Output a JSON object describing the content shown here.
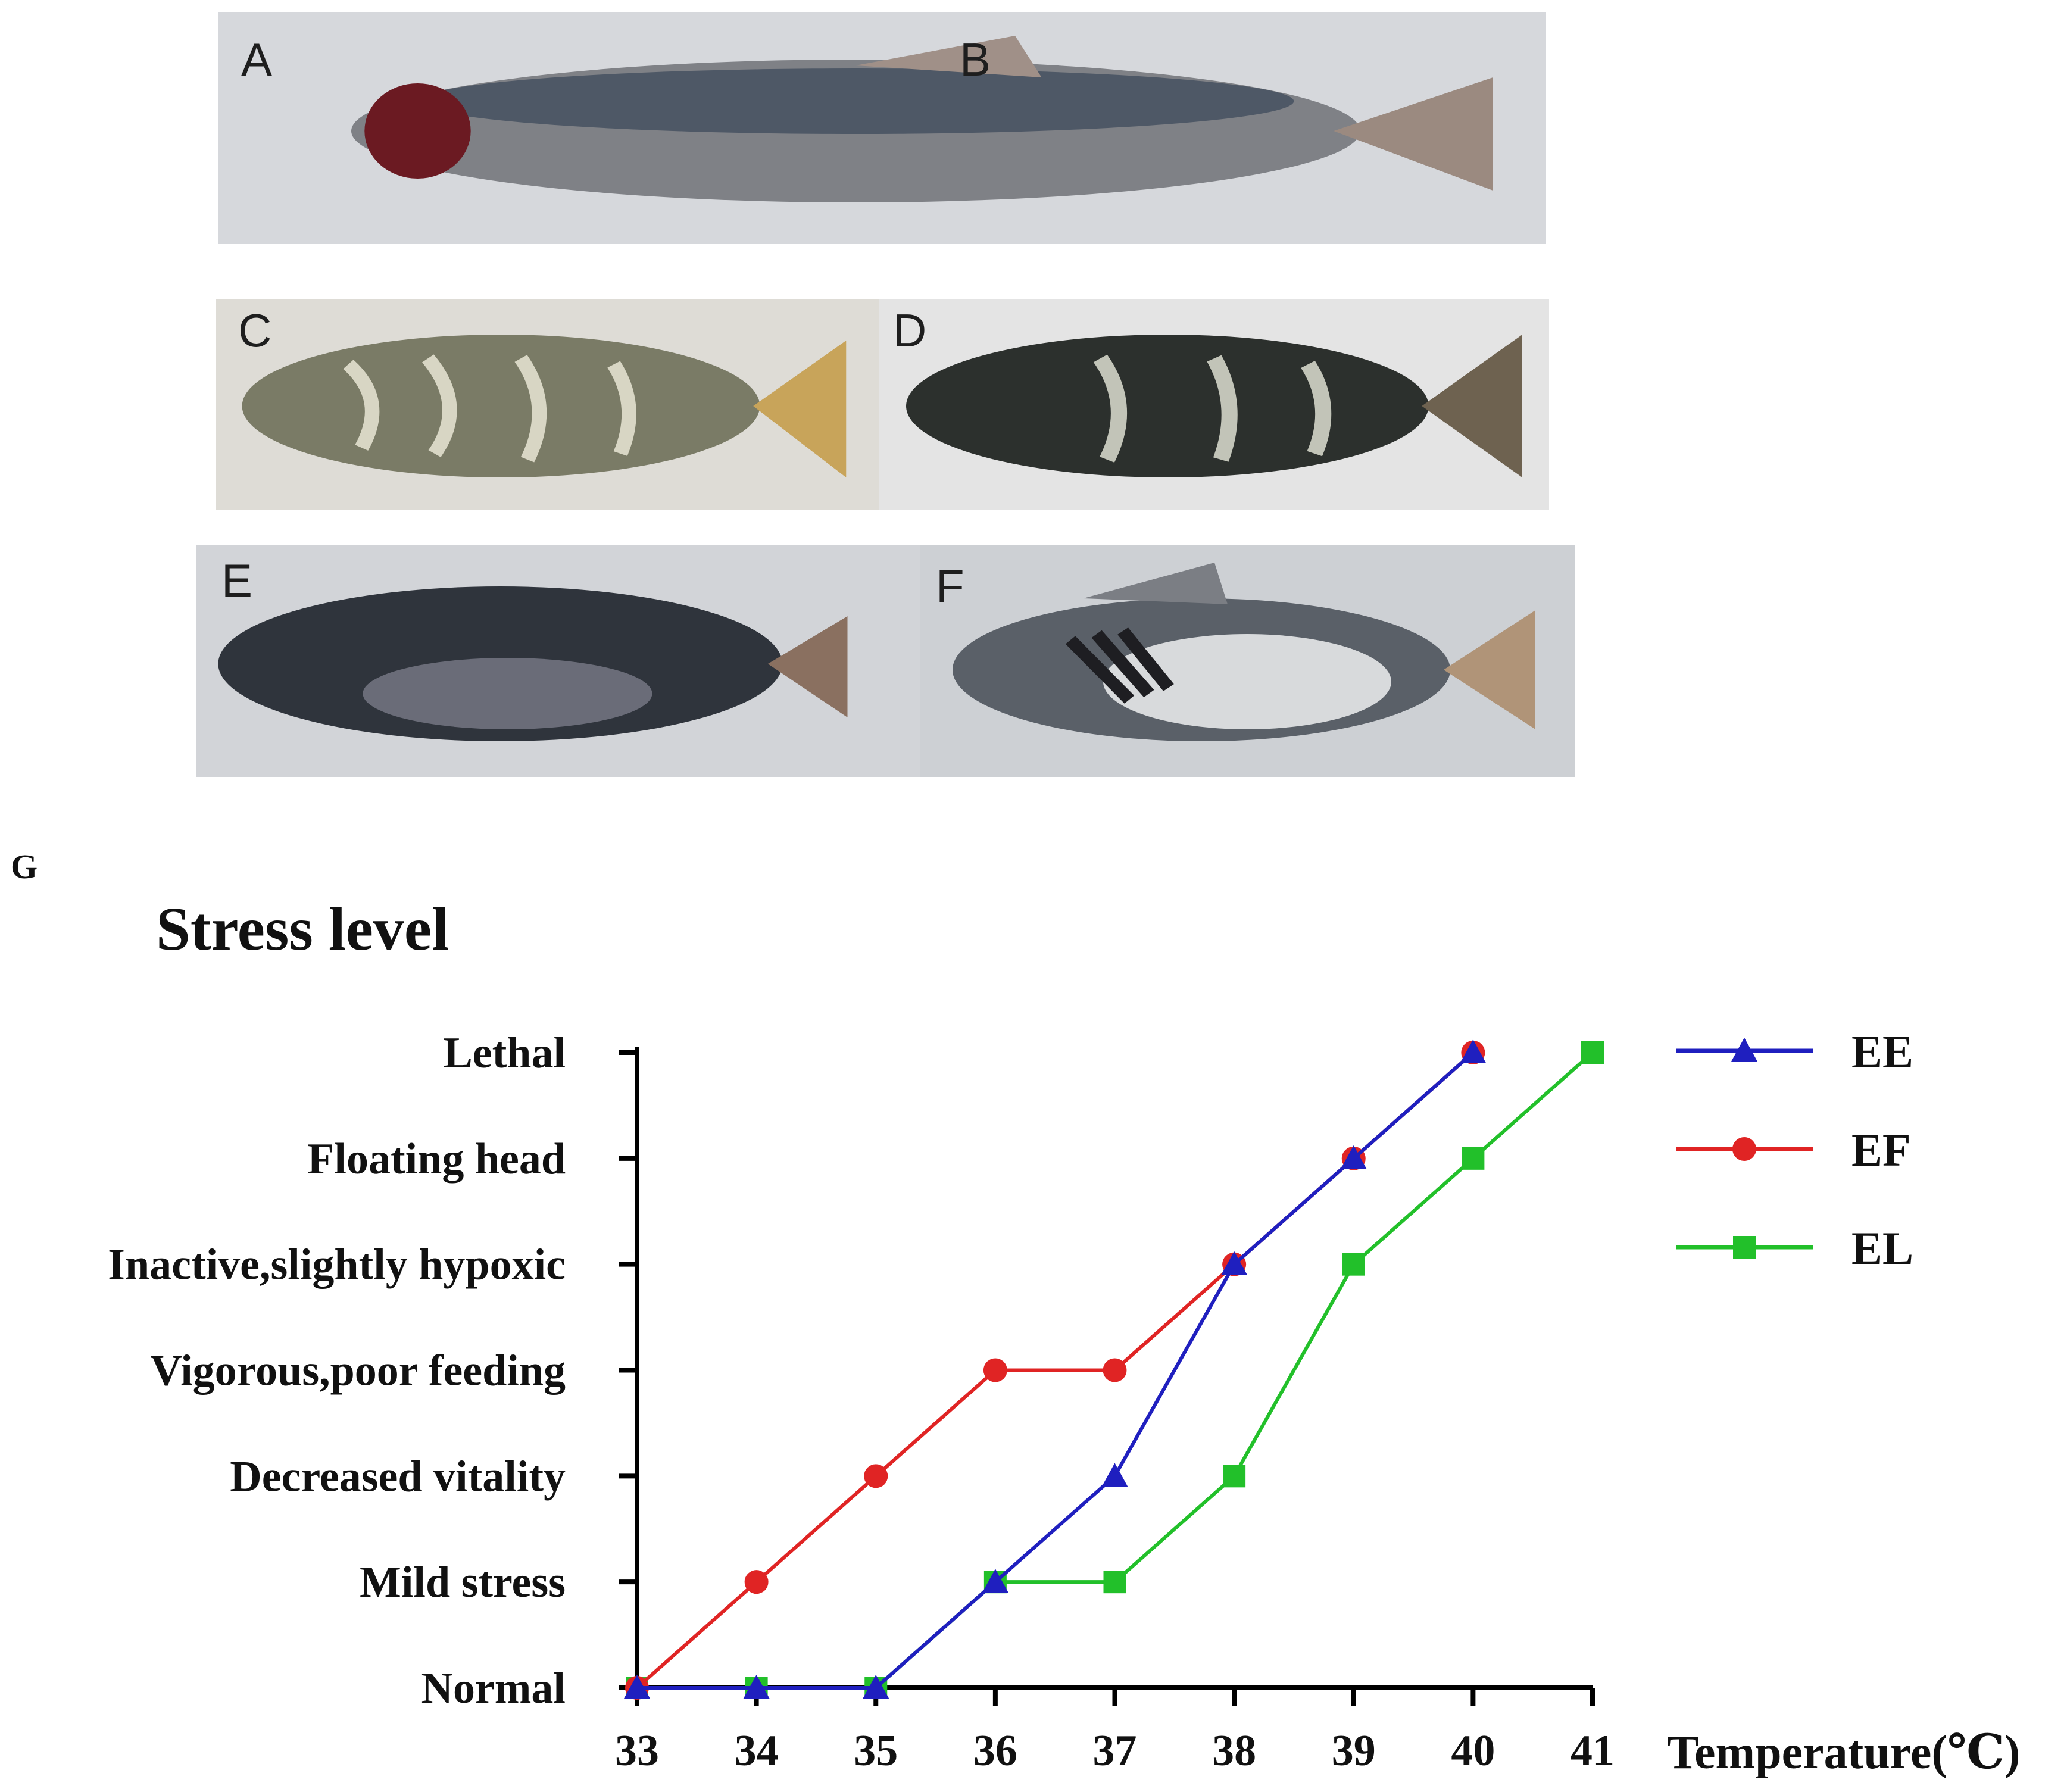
{
  "panels": [
    {
      "letter": "A",
      "theme": "#8a8c90"
    },
    {
      "letter": "B",
      "theme": "#3e4640"
    },
    {
      "letter": "C",
      "theme": "#7a7b66"
    },
    {
      "letter": "D",
      "theme": "#2c302d"
    },
    {
      "letter": "E",
      "theme": "#2f343c"
    },
    {
      "letter": "F",
      "theme": "#5a6068"
    }
  ],
  "figure_label": "G",
  "chart_data": {
    "type": "line",
    "title": "Stress level",
    "xlabel": "Temperature(℃)",
    "ylabel": "",
    "x": [
      33,
      34,
      35,
      36,
      37,
      38,
      39,
      40,
      41
    ],
    "xlim": [
      33,
      41
    ],
    "categories_y": [
      "Normal",
      "Mild stress",
      "Decreased vitality",
      "Vigorous,poor feeding",
      "Inactive,slightly hypoxic",
      "Floating head",
      "Lethal"
    ],
    "ylim": [
      0,
      6
    ],
    "grid": false,
    "legend_position": "right",
    "series": [
      {
        "name": "EE",
        "color": "#1f1fbf",
        "marker": "triangle",
        "x": [
          33,
          34,
          35,
          36,
          37,
          38,
          39,
          40
        ],
        "values": [
          0,
          0,
          0,
          1,
          2,
          4,
          5,
          6
        ]
      },
      {
        "name": "EF",
        "color": "#e02424",
        "marker": "circle",
        "x": [
          33,
          34,
          35,
          36,
          37,
          38,
          39,
          40
        ],
        "values": [
          0,
          1,
          2,
          3,
          3,
          4,
          5,
          6
        ]
      },
      {
        "name": "EL",
        "color": "#22c02a",
        "marker": "square",
        "x": [
          33,
          34,
          35,
          36,
          37,
          38,
          39,
          40,
          41
        ],
        "values": [
          0,
          0,
          0,
          1,
          1,
          2,
          4,
          5,
          6
        ]
      }
    ]
  }
}
